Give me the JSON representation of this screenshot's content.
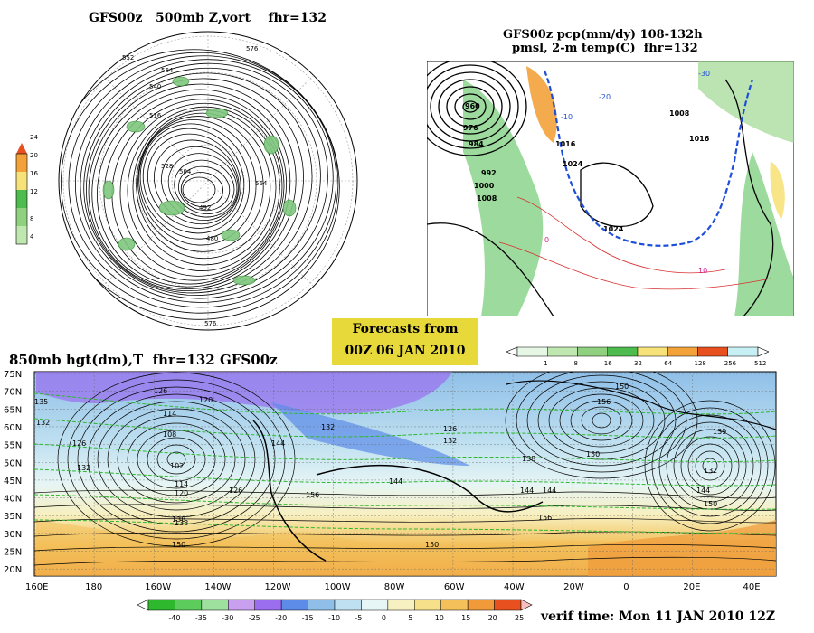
{
  "upper_left": {
    "title": "GFS00z   500mb Z,vort    fhr=132",
    "colorbar_labels": [
      "24",
      "20",
      "16",
      "12",
      "8",
      "4"
    ],
    "contour_labels": [
      "576",
      "552",
      "540",
      "564",
      "528",
      "516",
      "504",
      "492",
      "480",
      "564",
      "576"
    ]
  },
  "upper_right": {
    "title_line1": "GFS00z pcp(mm/dy) 108-132h",
    "title_line2": "pmsl, 2-m temp(C)  fhr=132",
    "colorbar_labels": [
      "1",
      "8",
      "16",
      "32",
      "64",
      "128",
      "256",
      "512"
    ],
    "isobar_labels": [
      "960",
      "976",
      "984",
      "992",
      "1000",
      "1008",
      "1016",
      "1024",
      "1024",
      "1016",
      "1008"
    ],
    "temp_labels": [
      "-20",
      "-10",
      "0",
      "10",
      "-30"
    ]
  },
  "forecast_box": {
    "line1": "Forecasts from",
    "line2": "00Z 06 JAN 2010"
  },
  "bottom": {
    "title": "850mb hgt(dm),T  fhr=132 GFS00z",
    "lat_labels": [
      "75N",
      "70N",
      "65N",
      "60N",
      "55N",
      "50N",
      "45N",
      "40N",
      "35N",
      "30N",
      "25N",
      "20N"
    ],
    "lon_labels": [
      "160E",
      "180",
      "160W",
      "140W",
      "120W",
      "100W",
      "80W",
      "60W",
      "40W",
      "20W",
      "0",
      "20E",
      "40E"
    ],
    "height_labels": [
      "126",
      "120",
      "114",
      "108",
      "102",
      "114",
      "120",
      "126",
      "132",
      "135",
      "132",
      "126",
      "132",
      "144",
      "138",
      "150",
      "156",
      "144",
      "150",
      "156",
      "144",
      "132",
      "139",
      "138",
      "144",
      "150",
      "132",
      "126",
      "150",
      "156",
      "150",
      "144",
      "138"
    ],
    "colorbar_labels": [
      "-40",
      "-35",
      "-30",
      "-25",
      "-20",
      "-15",
      "-10",
      "-5",
      "0",
      "5",
      "10",
      "15",
      "20",
      "25"
    ],
    "verif_time": "verif time: Mon 11 JAN 2010 12Z"
  },
  "colors": {
    "forecast_box": "#e8d93a",
    "precip": [
      "#e6f7e6",
      "#bfe8b0",
      "#8fd17f",
      "#4dbb4d",
      "#f7e27a",
      "#f3a23a",
      "#e8501f",
      "#c7f0f5"
    ],
    "temp": [
      "#2eb82e",
      "#5ccc5c",
      "#9ee09e",
      "#c9a0f0",
      "#9b6ef0",
      "#5c8ce8",
      "#8fbfe8",
      "#bfe0f0",
      "#e6f5f5",
      "#f7f0c0",
      "#f7e08a",
      "#f3c05a",
      "#f09a3a",
      "#e8501f"
    ]
  }
}
